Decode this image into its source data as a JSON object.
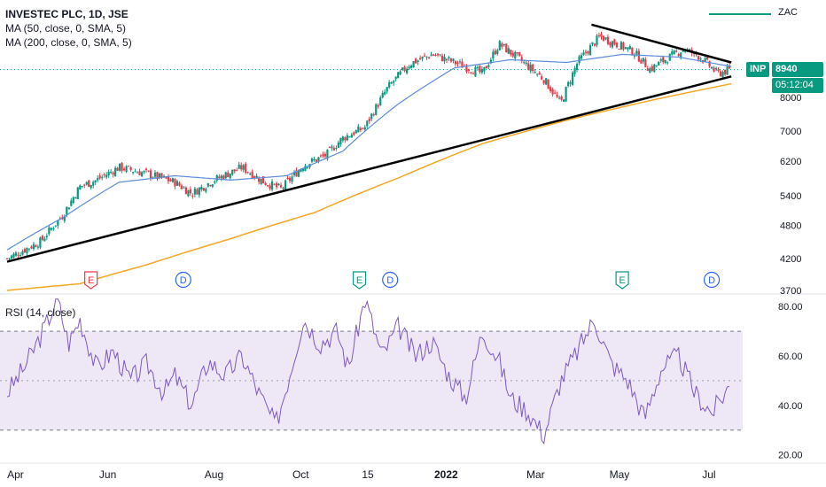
{
  "legend": {
    "title": "INVESTEC PLC, 1D, JSE",
    "ma50": "MA (50, close, 0, SMA, 5)",
    "ma200": "MA (200, close, 0, SMA, 5)",
    "rsi": "RSI (14, close)"
  },
  "zac_label": "ZAC",
  "ticker_tag": "INP",
  "price_tag": "8940",
  "countdown": "05:12:04",
  "colors": {
    "up": "#089981",
    "down": "#f23645",
    "ma50": "#5b8bd9",
    "ma200": "#f5a623",
    "rsi": "#7e57c2",
    "rsi_band": "#ede7f6",
    "trendline": "#000000",
    "price_tag_bg": "#089981"
  },
  "chart_data": [
    {
      "type": "candlestick",
      "title": "INVESTEC PLC, 1D, JSE",
      "x_ticks": [
        "Apr",
        "Jun",
        "Aug",
        "Oct",
        "15",
        "2022",
        "Mar",
        "May",
        "Jul"
      ],
      "y_ticks": [
        3700,
        4200,
        4800,
        5400,
        6200,
        7000,
        8000,
        8940
      ],
      "y_scale": "log",
      "ylim": [
        3700,
        11000
      ],
      "close_path": [
        {
          "m": 0,
          "v": 4200
        },
        {
          "m": 0.6,
          "v": 4500
        },
        {
          "m": 1.0,
          "v": 5000
        },
        {
          "m": 1.3,
          "v": 5600
        },
        {
          "m": 1.6,
          "v": 5750
        },
        {
          "m": 2.0,
          "v": 6050
        },
        {
          "m": 2.5,
          "v": 5900
        },
        {
          "m": 3.0,
          "v": 5700
        },
        {
          "m": 3.3,
          "v": 5450
        },
        {
          "m": 3.7,
          "v": 5750
        },
        {
          "m": 4.2,
          "v": 6050
        },
        {
          "m": 4.6,
          "v": 5700
        },
        {
          "m": 4.9,
          "v": 5550
        },
        {
          "m": 5.3,
          "v": 6100
        },
        {
          "m": 5.7,
          "v": 6350
        },
        {
          "m": 6.0,
          "v": 6800
        },
        {
          "m": 6.4,
          "v": 7100
        },
        {
          "m": 6.8,
          "v": 8300
        },
        {
          "m": 7.2,
          "v": 9150
        },
        {
          "m": 7.6,
          "v": 9500
        },
        {
          "m": 8.0,
          "v": 9200
        },
        {
          "m": 8.5,
          "v": 8800
        },
        {
          "m": 8.8,
          "v": 9900
        },
        {
          "m": 9.2,
          "v": 9250
        },
        {
          "m": 9.6,
          "v": 8600
        },
        {
          "m": 9.9,
          "v": 7800
        },
        {
          "m": 10.2,
          "v": 9200
        },
        {
          "m": 10.6,
          "v": 10200
        },
        {
          "m": 10.9,
          "v": 9900
        },
        {
          "m": 11.2,
          "v": 9600
        },
        {
          "m": 11.5,
          "v": 8950
        },
        {
          "m": 11.8,
          "v": 9350
        },
        {
          "m": 12.1,
          "v": 9700
        },
        {
          "m": 12.4,
          "v": 9400
        },
        {
          "m": 12.7,
          "v": 8800
        },
        {
          "m": 12.95,
          "v": 8940
        }
      ],
      "ma50": [
        {
          "m": 0.0,
          "v": 4350
        },
        {
          "m": 1.0,
          "v": 4950
        },
        {
          "m": 2.0,
          "v": 5700
        },
        {
          "m": 3.0,
          "v": 5850
        },
        {
          "m": 4.0,
          "v": 5750
        },
        {
          "m": 5.0,
          "v": 5850
        },
        {
          "m": 6.0,
          "v": 6450
        },
        {
          "m": 7.0,
          "v": 7800
        },
        {
          "m": 8.0,
          "v": 9000
        },
        {
          "m": 9.0,
          "v": 9300
        },
        {
          "m": 10.0,
          "v": 9200
        },
        {
          "m": 11.0,
          "v": 9500
        },
        {
          "m": 12.0,
          "v": 9400
        },
        {
          "m": 12.95,
          "v": 9050
        }
      ],
      "ma200": [
        {
          "m": 0.0,
          "v": 3700
        },
        {
          "m": 1.3,
          "v": 3800
        },
        {
          "m": 2.5,
          "v": 4100
        },
        {
          "m": 4.0,
          "v": 4550
        },
        {
          "m": 5.5,
          "v": 5050
        },
        {
          "m": 7.0,
          "v": 5800
        },
        {
          "m": 8.5,
          "v": 6650
        },
        {
          "m": 10.0,
          "v": 7300
        },
        {
          "m": 11.5,
          "v": 7900
        },
        {
          "m": 12.95,
          "v": 8450
        }
      ],
      "trendlines": [
        {
          "from": {
            "m": 0.0,
            "v": 4150
          },
          "to": {
            "m": 12.95,
            "v": 8700
          }
        },
        {
          "from": {
            "m": 10.45,
            "v": 10700
          },
          "to": {
            "m": 12.95,
            "v": 9200
          }
        }
      ],
      "event_markers": [
        {
          "label": "E",
          "m": 1.5,
          "color": "#f23645"
        },
        {
          "label": "D",
          "m": 3.15,
          "color": "#2962ff"
        },
        {
          "label": "E",
          "m": 6.3,
          "color": "#089981"
        },
        {
          "label": "D",
          "m": 6.85,
          "color": "#2962ff"
        },
        {
          "label": "E",
          "m": 11.0,
          "color": "#089981"
        },
        {
          "label": "D",
          "m": 12.6,
          "color": "#2962ff"
        }
      ]
    },
    {
      "type": "line",
      "title": "RSI (14, close)",
      "y_ticks": [
        20.0,
        40.0,
        60.0,
        80.0
      ],
      "ylim": [
        17,
        84
      ],
      "band": [
        30,
        70
      ],
      "midline": 50,
      "series": [
        {
          "values": [
            {
              "m": 0.0,
              "v": 45
            },
            {
              "m": 0.3,
              "v": 55
            },
            {
              "m": 0.6,
              "v": 68
            },
            {
              "m": 0.9,
              "v": 83
            },
            {
              "m": 1.1,
              "v": 65
            },
            {
              "m": 1.3,
              "v": 75
            },
            {
              "m": 1.6,
              "v": 55
            },
            {
              "m": 1.9,
              "v": 62
            },
            {
              "m": 2.2,
              "v": 50
            },
            {
              "m": 2.5,
              "v": 57
            },
            {
              "m": 2.8,
              "v": 45
            },
            {
              "m": 3.0,
              "v": 52
            },
            {
              "m": 3.3,
              "v": 40
            },
            {
              "m": 3.6,
              "v": 58
            },
            {
              "m": 3.9,
              "v": 52
            },
            {
              "m": 4.2,
              "v": 60
            },
            {
              "m": 4.5,
              "v": 45
            },
            {
              "m": 4.8,
              "v": 32
            },
            {
              "m": 5.0,
              "v": 48
            },
            {
              "m": 5.3,
              "v": 75
            },
            {
              "m": 5.6,
              "v": 65
            },
            {
              "m": 5.9,
              "v": 70
            },
            {
              "m": 6.1,
              "v": 55
            },
            {
              "m": 6.4,
              "v": 83
            },
            {
              "m": 6.7,
              "v": 60
            },
            {
              "m": 7.0,
              "v": 72
            },
            {
              "m": 7.3,
              "v": 60
            },
            {
              "m": 7.6,
              "v": 66
            },
            {
              "m": 7.9,
              "v": 52
            },
            {
              "m": 8.2,
              "v": 43
            },
            {
              "m": 8.5,
              "v": 70
            },
            {
              "m": 8.8,
              "v": 58
            },
            {
              "m": 9.0,
              "v": 43
            },
            {
              "m": 9.3,
              "v": 38
            },
            {
              "m": 9.6,
              "v": 28
            },
            {
              "m": 9.9,
              "v": 50
            },
            {
              "m": 10.2,
              "v": 62
            },
            {
              "m": 10.5,
              "v": 75
            },
            {
              "m": 10.8,
              "v": 57
            },
            {
              "m": 11.1,
              "v": 50
            },
            {
              "m": 11.4,
              "v": 35
            },
            {
              "m": 11.7,
              "v": 55
            },
            {
              "m": 12.0,
              "v": 60
            },
            {
              "m": 12.3,
              "v": 45
            },
            {
              "m": 12.6,
              "v": 37
            },
            {
              "m": 12.95,
              "v": 49
            }
          ]
        }
      ]
    }
  ]
}
